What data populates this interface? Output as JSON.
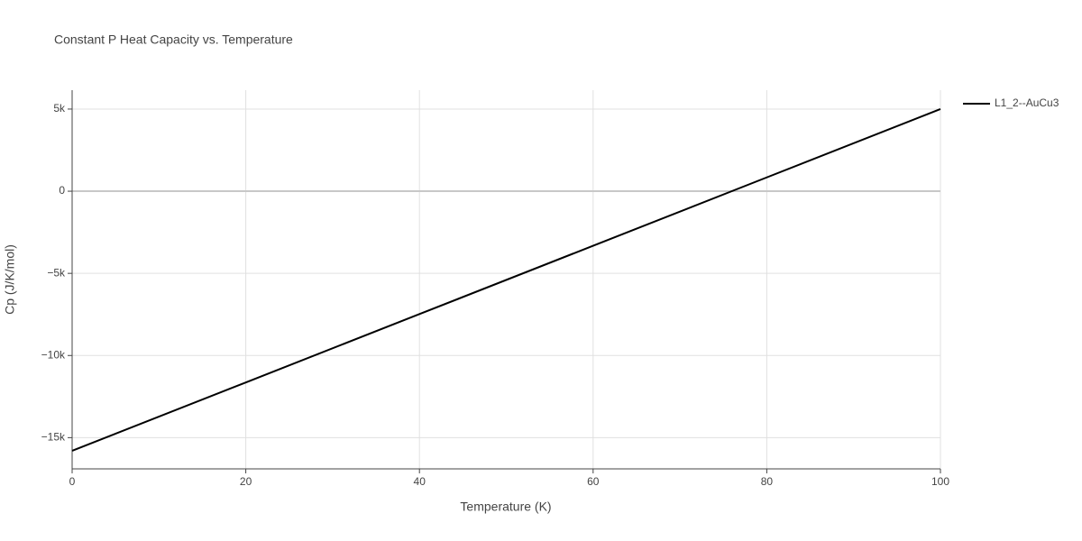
{
  "chart_data": {
    "type": "line",
    "title": "Constant P Heat Capacity vs. Temperature",
    "x_label": "Temperature (K)",
    "y_label": "Cp (J/K/mol)",
    "x": [
      0,
      20,
      40,
      60,
      80,
      100
    ],
    "series": [
      {
        "name": "L1_2--AuCu3",
        "color": "#000000",
        "values": [
          -15800,
          -11640,
          -7480,
          -3320,
          840,
          5000
        ]
      }
    ],
    "xlim": [
      0,
      100
    ],
    "xticks": [
      0,
      20,
      40,
      60,
      80,
      100
    ],
    "ylim": [
      -16900,
      6150
    ],
    "yticks": [
      {
        "value": -15000,
        "label": "−15k"
      },
      {
        "value": -10000,
        "label": "−10k"
      },
      {
        "value": -5000,
        "label": "−5k"
      },
      0,
      {
        "value": 5000,
        "label": "5k"
      }
    ],
    "grid": true,
    "legend": "right"
  }
}
